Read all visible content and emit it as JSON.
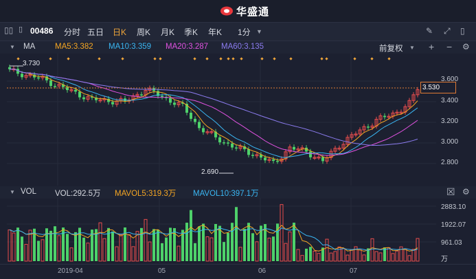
{
  "app": {
    "title": "华盛通"
  },
  "toolbar": {
    "code": "00486",
    "periods": [
      {
        "label": "分时"
      },
      {
        "label": "五日"
      },
      {
        "label": "日K",
        "active": true
      },
      {
        "label": "周K"
      },
      {
        "label": "月K"
      },
      {
        "label": "季K"
      },
      {
        "label": "年K"
      },
      {
        "label": "1分"
      }
    ]
  },
  "ma_bar": {
    "name": "MA",
    "ma5": "MA5:3.382",
    "ma10": "MA10:3.359",
    "ma20": "MA20:3.287",
    "ma60": "MA60:3.135",
    "adjust": "前复权",
    "colors": {
      "ma5": "#f5a623",
      "ma10": "#3ab6f2",
      "ma20": "#e052e0",
      "ma60": "#8c7cf0"
    }
  },
  "price_axis": {
    "ticks": [
      "3.600",
      "3.400",
      "3.200",
      "3.000",
      "2.800"
    ],
    "current": "3.530",
    "high_label": "3.730",
    "low_label": "2.690"
  },
  "vol_bar": {
    "name": "VOL",
    "vol": "VOL:292.5万",
    "mavol5": "MAVOL5:319.3万",
    "mavol10": "MAVOL10:397.1万"
  },
  "vol_axis": {
    "ticks": [
      "2883.10",
      "1922.07",
      "961.03"
    ],
    "unit": "万"
  },
  "dates": [
    "2019-04",
    "05",
    "06",
    "07"
  ],
  "colors": {
    "up": "#e84d4d",
    "down": "#4ed16a",
    "bg": "#1c2030"
  }
}
